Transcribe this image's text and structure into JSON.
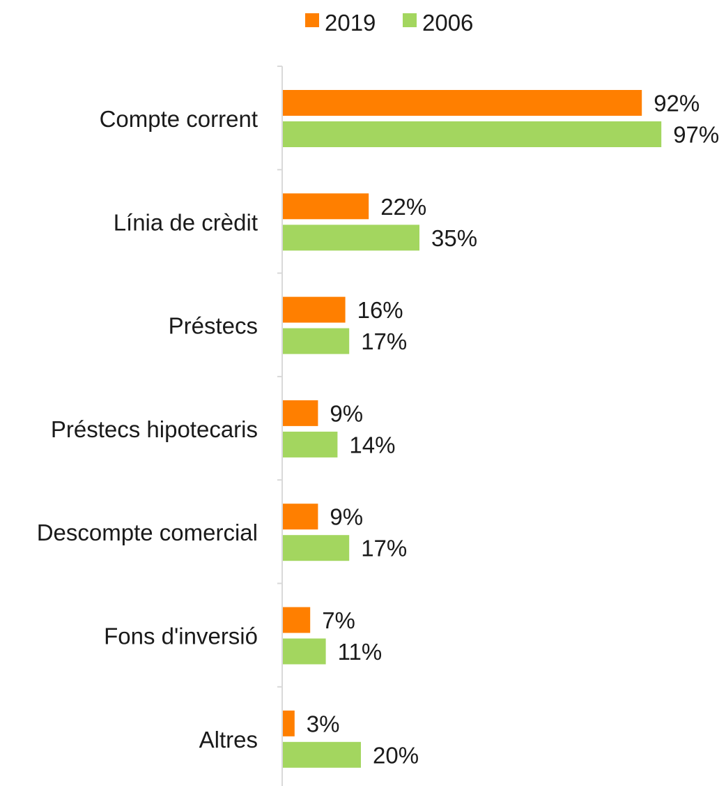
{
  "chart_data": {
    "type": "bar",
    "orientation": "horizontal",
    "categories": [
      "Compte corrent",
      "Línia de crèdit",
      "Préstecs",
      "Préstecs hipotecaris",
      "Descompte comercial",
      "Fons d'inversió",
      "Altres"
    ],
    "series": [
      {
        "name": "2019",
        "color": "#ff7f00",
        "values": [
          92,
          22,
          16,
          9,
          9,
          7,
          3
        ],
        "labels": [
          "92%",
          "22%",
          "16%",
          "9%",
          "9%",
          "7%",
          "3%"
        ]
      },
      {
        "name": "2006",
        "color": "#a3d65f",
        "values": [
          97,
          35,
          17,
          14,
          17,
          11,
          20
        ],
        "labels": [
          "97%",
          "35%",
          "17%",
          "14%",
          "17%",
          "11%",
          "20%"
        ]
      }
    ],
    "xlim": [
      0,
      100
    ],
    "grid": false,
    "legend": "top"
  }
}
